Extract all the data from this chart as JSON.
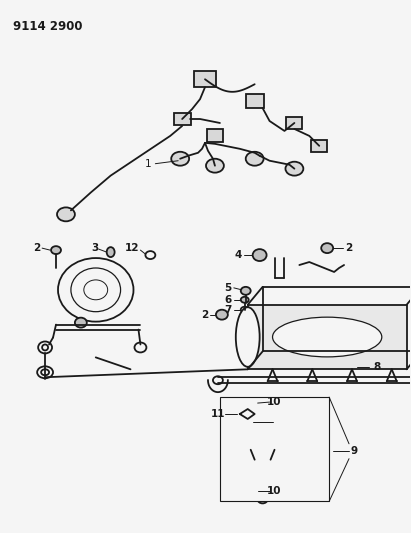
{
  "title": "9114 2900",
  "background_color": "#f5f5f5",
  "line_color": "#1a1a1a",
  "fig_width": 4.11,
  "fig_height": 5.33,
  "dpi": 100
}
